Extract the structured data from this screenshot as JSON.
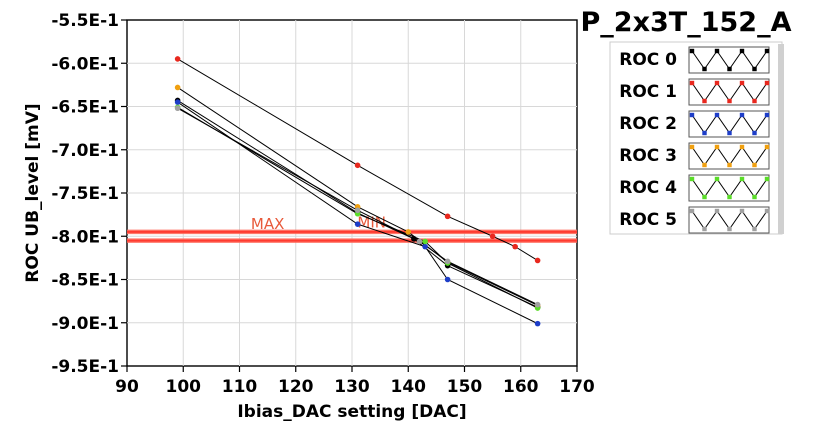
{
  "title": "P_2x3T_152_A",
  "chart_data": {
    "type": "scatter",
    "xlabel": "Ibias_DAC setting [DAC]",
    "ylabel": "ROC UB_level [mV]",
    "xlim": [
      90,
      170
    ],
    "ylim": [
      -0.95,
      -0.55
    ],
    "x_ticks": [
      "90",
      "100",
      "110",
      "120",
      "130",
      "140",
      "150",
      "160",
      "170"
    ],
    "y_ticks": [
      "-5.5E-1",
      "-6.0E-1",
      "-6.5E-1",
      "-7.0E-1",
      "-7.5E-1",
      "-8.0E-1",
      "-8.5E-1",
      "-9.0E-1",
      "-9.5E-1"
    ],
    "grid": true,
    "legend_position": "right",
    "limits": [
      {
        "label": "MAX",
        "y": -0.795,
        "color": "#ff3b30"
      },
      {
        "label": "MIN",
        "y": -0.805,
        "color": "#ff3b30"
      }
    ],
    "series": [
      {
        "name": "ROC 0",
        "color": "#000000",
        "points": [
          [
            99,
            -0.643
          ],
          [
            131,
            -0.773
          ],
          [
            141,
            -0.803
          ],
          [
            147,
            -0.834
          ],
          [
            163,
            -0.882
          ]
        ]
      },
      {
        "name": "ROC 1",
        "color": "#e8281e",
        "points": [
          [
            99,
            -0.595
          ],
          [
            131,
            -0.718
          ],
          [
            147,
            -0.777
          ],
          [
            155,
            -0.8
          ],
          [
            159,
            -0.812
          ],
          [
            163,
            -0.828
          ]
        ]
      },
      {
        "name": "ROC 2",
        "color": "#1e3ec8",
        "points": [
          [
            99,
            -0.645
          ],
          [
            131,
            -0.786
          ],
          [
            143,
            -0.812
          ],
          [
            147,
            -0.85
          ],
          [
            163,
            -0.901
          ]
        ]
      },
      {
        "name": "ROC 3",
        "color": "#f0a010",
        "points": [
          [
            99,
            -0.628
          ],
          [
            131,
            -0.766
          ],
          [
            140,
            -0.795
          ],
          [
            147,
            -0.83
          ],
          [
            163,
            -0.88
          ]
        ]
      },
      {
        "name": "ROC 4",
        "color": "#5adc28",
        "points": [
          [
            99,
            -0.651
          ],
          [
            131,
            -0.774
          ],
          [
            143,
            -0.806
          ],
          [
            147,
            -0.831
          ],
          [
            163,
            -0.883
          ]
        ]
      },
      {
        "name": "ROC 5",
        "color": "#a0a0a0",
        "points": [
          [
            99,
            -0.652
          ],
          [
            131,
            -0.77
          ],
          [
            142,
            -0.806
          ],
          [
            147,
            -0.829
          ],
          [
            163,
            -0.879
          ]
        ]
      }
    ]
  }
}
